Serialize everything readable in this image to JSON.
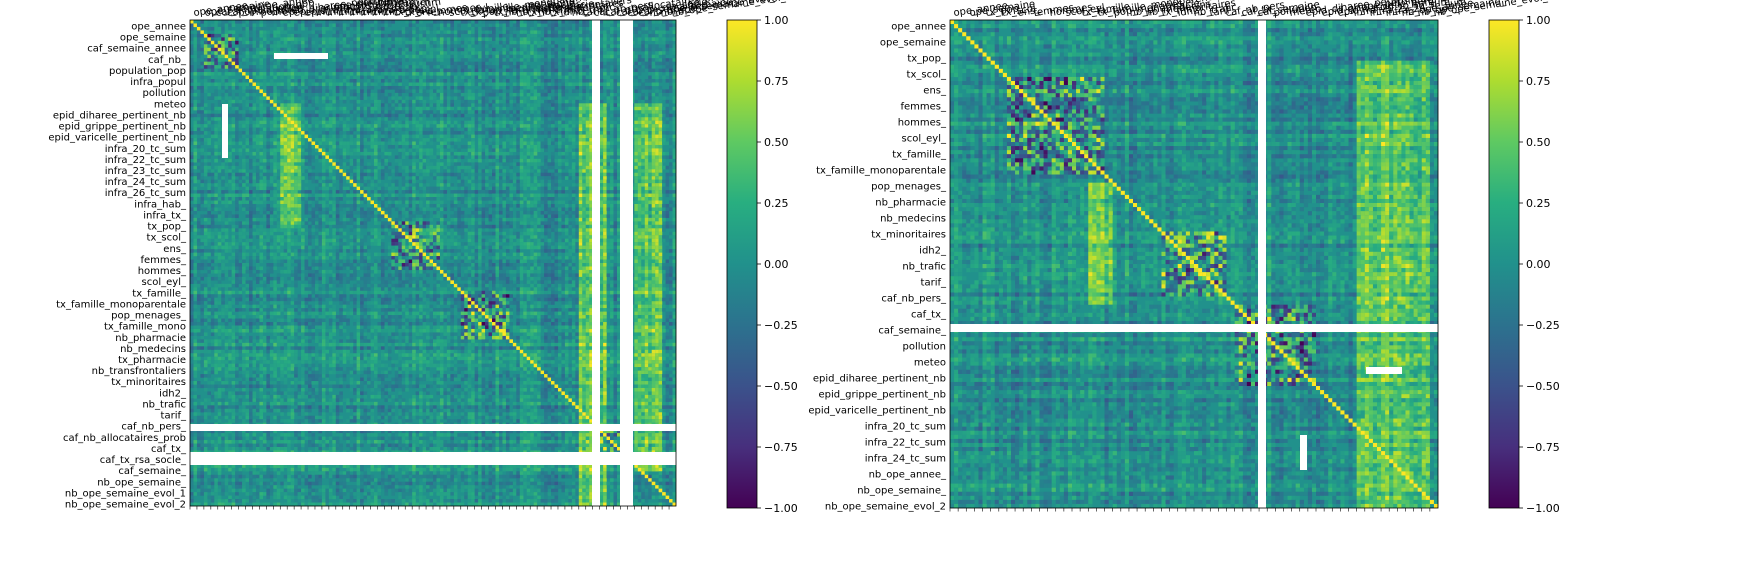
{
  "chart_data": [
    {
      "type": "heatmap",
      "title": "",
      "colormap": "viridis",
      "vmin": -1,
      "vmax": 1,
      "colorbar_ticks": [
        1.0,
        0.75,
        0.5,
        0.25,
        0.0,
        -0.25,
        -0.5,
        -0.75,
        -1.0
      ],
      "colorbar_tick_labels": [
        "1.00",
        "0.75",
        "0.50",
        "0.25",
        "0.00",
        "−0.25",
        "−0.50",
        "−0.75",
        "−1.00"
      ],
      "row_labels": [
        "ope_annee",
        "ope_semaine",
        "caf_semaine_annee",
        "caf_nb_",
        "population_pop",
        "infra_popul",
        "pollution",
        "meteo",
        "epid_diharee_pertinent_nb",
        "epid_grippe_pertinent_nb",
        "epid_varicelle_pertinent_nb",
        "infra_20_tc_sum",
        "infra_22_tc_sum",
        "infra_23_tc_sum",
        "infra_24_tc_sum",
        "infra_26_tc_sum",
        "infra_hab_",
        "infra_tx_",
        "tx_pop_",
        "tx_scol_",
        "ens_",
        "femmes_",
        "hommes_",
        "scol_eyl_",
        "tx_famille_",
        "tx_famille_monoparentale",
        "pop_menages_",
        "tx_famille_mono",
        "nb_pharmacie",
        "nb_medecins",
        "tx_pharmacie",
        "nb_transfrontaliers",
        "tx_minoritaires",
        "idh2_",
        "nb_trafic",
        "tarif_",
        "caf_nb_pers_",
        "caf_nb_allocataires_prob",
        "caf_tx_",
        "caf_tx_rsa_socle_",
        "caf_semaine_",
        "nb_ope_semaine_",
        "nb_ope_semaine_evol_1",
        "nb_ope_semaine_evol_2"
      ]
    },
    {
      "type": "heatmap",
      "title": "",
      "colormap": "viridis",
      "vmin": -1,
      "vmax": 1,
      "colorbar_ticks": [
        1.0,
        0.75,
        0.5,
        0.25,
        0.0,
        -0.25,
        -0.5,
        -0.75,
        -1.0
      ],
      "colorbar_tick_labels": [
        "1.00",
        "0.75",
        "0.50",
        "0.25",
        "0.00",
        "−0.25",
        "−0.50",
        "−0.75",
        "−1.00"
      ],
      "row_labels": [
        "ope_annee",
        "ope_semaine",
        "tx_pop_",
        "tx_scol_",
        "ens_",
        "femmes_",
        "hommes_",
        "scol_eyl_",
        "tx_famille_",
        "tx_famille_monoparentale",
        "pop_menages_",
        "nb_pharmacie",
        "nb_medecins",
        "tx_minoritaires",
        "idh2_",
        "nb_trafic",
        "tarif_",
        "caf_nb_pers_",
        "caf_tx_",
        "caf_semaine_",
        "pollution",
        "meteo",
        "epid_diharee_pertinent_nb",
        "epid_grippe_pertinent_nb",
        "epid_varicelle_pertinent_nb",
        "infra_20_tc_sum",
        "infra_22_tc_sum",
        "infra_24_tc_sum",
        "nb_ope_annee_",
        "nb_ope_semaine_",
        "nb_ope_semaine_evol_2"
      ]
    }
  ]
}
